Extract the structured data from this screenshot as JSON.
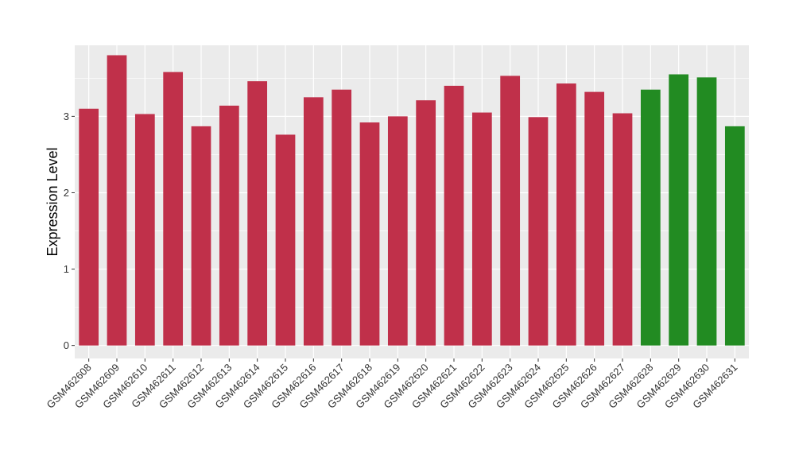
{
  "chart_data": {
    "type": "bar",
    "title": "",
    "xlabel": "",
    "ylabel": "Expression Level",
    "ylim": [
      -0.17,
      3.93
    ],
    "yticks": [
      0,
      1,
      2,
      3
    ],
    "ytick_labels": [
      "0",
      "1",
      "2",
      "3"
    ],
    "grid": true,
    "legend": "none",
    "categories": [
      "GSM462608",
      "GSM462609",
      "GSM462610",
      "GSM462611",
      "GSM462612",
      "GSM462613",
      "GSM462614",
      "GSM462615",
      "GSM462616",
      "GSM462617",
      "GSM462618",
      "GSM462619",
      "GSM462620",
      "GSM462621",
      "GSM462622",
      "GSM462623",
      "GSM462624",
      "GSM462625",
      "GSM462626",
      "GSM462627",
      "GSM462628",
      "GSM462629",
      "GSM462630",
      "GSM462631"
    ],
    "values": [
      3.1,
      3.8,
      3.03,
      3.58,
      2.87,
      3.14,
      3.46,
      2.76,
      3.25,
      3.35,
      2.92,
      3.0,
      3.21,
      3.4,
      3.05,
      3.53,
      2.99,
      3.43,
      3.32,
      3.04,
      3.35,
      3.55,
      3.51,
      2.87
    ],
    "bar_colors": [
      "#c0304a",
      "#c0304a",
      "#c0304a",
      "#c0304a",
      "#c0304a",
      "#c0304a",
      "#c0304a",
      "#c0304a",
      "#c0304a",
      "#c0304a",
      "#c0304a",
      "#c0304a",
      "#c0304a",
      "#c0304a",
      "#c0304a",
      "#c0304a",
      "#c0304a",
      "#c0304a",
      "#c0304a",
      "#c0304a",
      "#228b22",
      "#228b22",
      "#228b22",
      "#228b22"
    ],
    "panel_background": "#ebebeb",
    "grid_color": "#ffffff"
  }
}
